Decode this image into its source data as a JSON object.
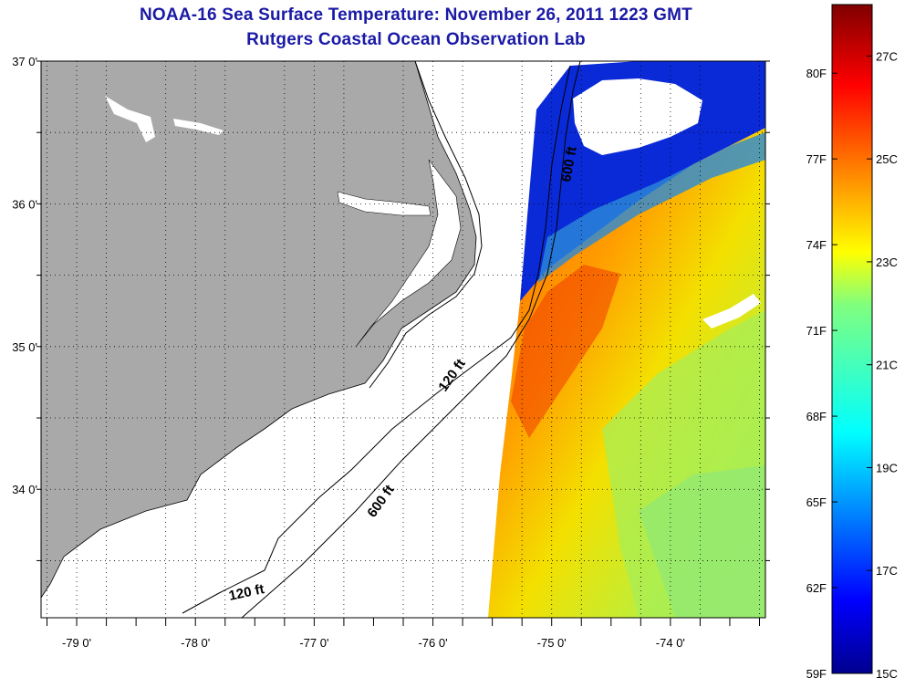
{
  "header": {
    "title": "NOAA-16 Sea Surface Temperature:  November 26, 2011 1223 GMT",
    "subtitle": "Rutgers Coastal Ocean Observation Lab"
  },
  "map": {
    "lat_labels": [
      "37 0'",
      "36 0'",
      "35 0'",
      "34 0'"
    ],
    "lon_labels": [
      "-79 0'",
      "-78 0'",
      "-77 0'",
      "-76 0'",
      "-75 0'",
      "-74 0'"
    ],
    "lat_range": [
      33.1,
      37.0
    ],
    "lon_range": [
      -79.3,
      -73.2
    ],
    "contour_labels": [
      "600 ft",
      "120 ft",
      "600 ft",
      "120 ft"
    ],
    "colors": {
      "land": "#a9a9a9",
      "no_data": "#ffffff",
      "cloud": "#ffffff"
    }
  },
  "colorbar": {
    "fahrenheit_labels": [
      "80F",
      "77F",
      "74F",
      "71F",
      "68F",
      "65F",
      "62F",
      "59F"
    ],
    "celsius_labels": [
      "27C",
      "25C",
      "23C",
      "21C",
      "19C",
      "17C",
      "15C"
    ],
    "range_c": [
      15,
      28
    ],
    "colormap": "jet"
  }
}
